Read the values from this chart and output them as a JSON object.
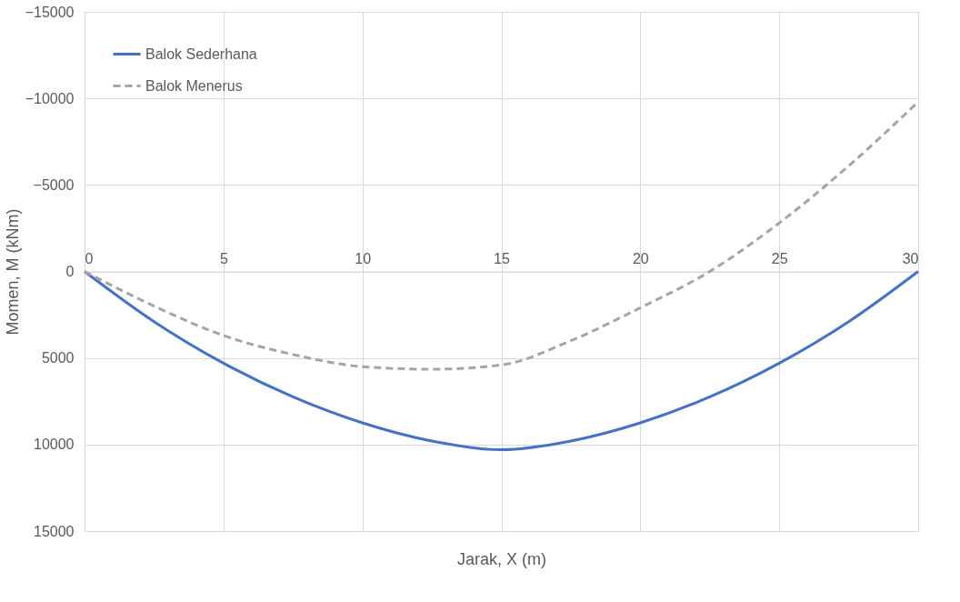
{
  "chart_data": {
    "type": "line",
    "xlabel": "Jarak, X  (m)",
    "ylabel": "Momen, M (kNm)",
    "x": [
      0,
      2.5,
      5,
      7.5,
      10,
      12.5,
      15,
      17.5,
      20,
      22.5,
      25,
      27.5,
      30
    ],
    "series": [
      {
        "name": "Balok Sederhana",
        "color": "#4472c4",
        "line_style": "solid",
        "values": [
          0,
          2900,
          5300,
          7250,
          8750,
          9800,
          10300,
          9800,
          8750,
          7250,
          5300,
          2900,
          0
        ]
      },
      {
        "name": "Balok Menerus",
        "color": "#a5a5a5",
        "line_style": "dashed",
        "values": [
          0,
          2000,
          3700,
          4800,
          5500,
          5650,
          5400,
          4000,
          2100,
          0,
          -2800,
          -6100,
          -9800
        ]
      }
    ],
    "xlim": [
      0,
      30
    ],
    "xticks": [
      0,
      5,
      10,
      15,
      20,
      25,
      30
    ],
    "ylim": [
      15000,
      -15000
    ],
    "yticks": [
      -15000,
      -10000,
      -5000,
      0,
      5000,
      10000,
      15000
    ],
    "grid": true,
    "legend": "top left"
  }
}
